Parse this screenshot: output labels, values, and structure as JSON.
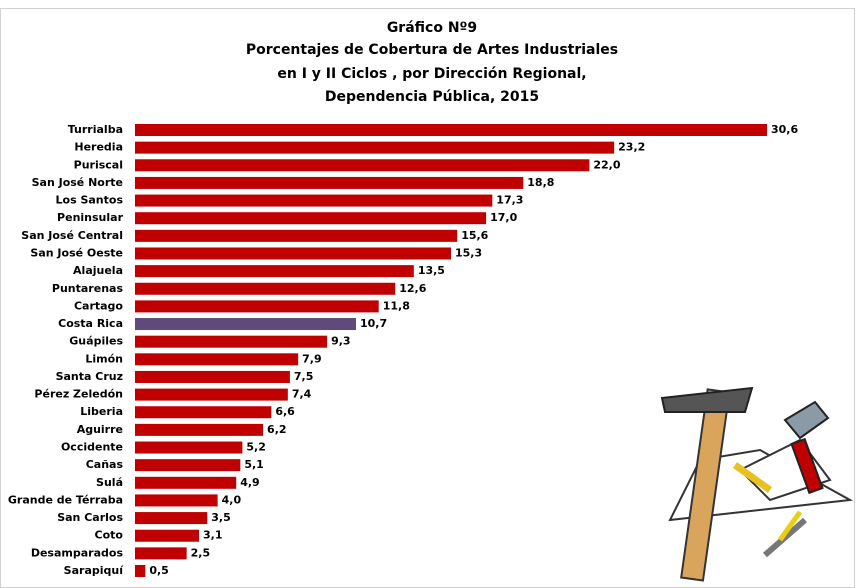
{
  "chart_data": {
    "type": "bar",
    "orientation": "horizontal",
    "title": [
      "Gráfico Nº9",
      "Porcentajes de Cobertura de Artes Industriales",
      "en I y II Ciclos , por Dirección Regional,",
      "Dependencia Pública,  2015"
    ],
    "categories": [
      "Turrialba",
      "Heredia",
      "Puriscal",
      "San José Norte",
      "Los Santos",
      "Peninsular",
      "San José Central",
      "San José Oeste",
      "Alajuela",
      "Puntarenas",
      "Cartago",
      "Costa Rica",
      "Guápiles",
      "Limón",
      "Santa Cruz",
      "Pérez Zeledón",
      "Liberia",
      "Aguirre",
      "Occidente",
      "Cañas",
      "Sulá",
      "Grande de Térraba",
      "San Carlos",
      "Coto",
      "Desamparados",
      "Sarapiquí"
    ],
    "values": [
      30.6,
      23.2,
      22.0,
      18.8,
      17.3,
      17.0,
      15.6,
      15.3,
      13.5,
      12.6,
      11.8,
      10.7,
      9.3,
      7.9,
      7.5,
      7.4,
      6.6,
      6.2,
      5.2,
      5.1,
      4.9,
      4.0,
      3.5,
      3.1,
      2.5,
      0.5
    ],
    "value_labels": [
      "30,6",
      "23,2",
      "22,0",
      "18,8",
      "17,3",
      "17,0",
      "15,6",
      "15,3",
      "13,5",
      "12,6",
      "11,8",
      "10,7",
      "9,3",
      "7,9",
      "7,5",
      "7,4",
      "6,6",
      "6,2",
      "5,2",
      "5,1",
      "4,9",
      "4,0",
      "3,5",
      "3,1",
      "2,5",
      "0,5"
    ],
    "colors": [
      "#c00000",
      "#c00000",
      "#c00000",
      "#c00000",
      "#c00000",
      "#c00000",
      "#c00000",
      "#c00000",
      "#c00000",
      "#c00000",
      "#c00000",
      "#604a7b",
      "#c00000",
      "#c00000",
      "#c00000",
      "#c00000",
      "#c00000",
      "#c00000",
      "#c00000",
      "#c00000",
      "#c00000",
      "#c00000",
      "#c00000",
      "#c00000",
      "#c00000",
      "#c00000"
    ]
  }
}
